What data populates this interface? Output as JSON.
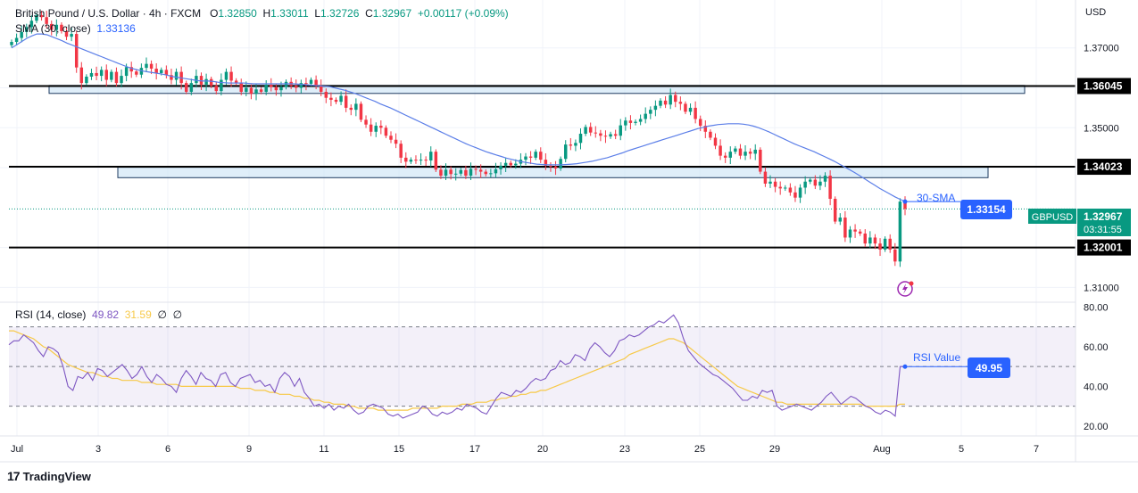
{
  "header": {
    "symbol": "British Pound / U.S. Dollar · 4h · FXCM",
    "open_label": "O",
    "open": "1.32850",
    "high_label": "H",
    "high": "1.33011",
    "low_label": "L",
    "low": "1.32726",
    "close_label": "C",
    "close": "1.32967",
    "change": "+0.00117 (+0.09%)",
    "sma_label": "SMA (30, close)",
    "sma_value": "1.33136",
    "rsi_label": "RSI (14, close)",
    "rsi_value": "49.82",
    "rsi_ma_value": "31.59",
    "rsi_extra1": "∅",
    "rsi_extra2": "∅"
  },
  "currency": "USD",
  "brand": {
    "logo_mark": "17",
    "name": "TradingView"
  },
  "colors": {
    "up": "#089981",
    "down": "#f23645",
    "sma": "#5b7ee8",
    "rsi": "#7e57c2",
    "rsi_ma": "#f7c948",
    "zone": "#c9e2f5"
  },
  "chart_data": [
    {
      "type": "candlestick",
      "title": "British Pound / U.S. Dollar · 4h · FXCM",
      "ylim": [
        1.3063,
        1.382
      ],
      "y_ticks": [
        "1.37000",
        "1.35000",
        "1.31000"
      ],
      "x_ticks": [
        "Jul",
        "3",
        "6",
        "9",
        "11",
        "15",
        "17",
        "20",
        "23",
        "25",
        "29",
        "Aug",
        "5",
        "7"
      ],
      "levels": [
        {
          "value": "1.36045"
        },
        {
          "value": "1.34023"
        },
        {
          "value": "1.32001"
        }
      ],
      "zones": [
        {
          "top": 1.3606,
          "bottom": 1.3586
        },
        {
          "top": 1.3401,
          "bottom": 1.3375
        }
      ],
      "current_price": {
        "label": "GBPUSD",
        "value": "1.32967",
        "countdown": "03:31:55"
      },
      "sma_annotation": {
        "text": "30-SMA",
        "value": "1.33154"
      },
      "closes": [
        1.3715,
        1.3725,
        1.374,
        1.3752,
        1.3768,
        1.3782,
        1.3777,
        1.376,
        1.3745,
        1.3758,
        1.3742,
        1.3728,
        1.3735,
        1.3651,
        1.3612,
        1.3628,
        1.3637,
        1.363,
        1.3645,
        1.362,
        1.364,
        1.3612,
        1.363,
        1.3652,
        1.3641,
        1.3633,
        1.365,
        1.366,
        1.3648,
        1.3637,
        1.3645,
        1.3632,
        1.362,
        1.364,
        1.3612,
        1.359,
        1.3612,
        1.363,
        1.3608,
        1.3622,
        1.3605,
        1.3592,
        1.362,
        1.364,
        1.3618,
        1.3612,
        1.359,
        1.36,
        1.3585,
        1.3596,
        1.359,
        1.3608,
        1.3602,
        1.3594,
        1.3602,
        1.3615,
        1.3605,
        1.36,
        1.3612,
        1.361,
        1.362,
        1.3605,
        1.359,
        1.3575,
        1.357,
        1.3565,
        1.358,
        1.355,
        1.3545,
        1.356,
        1.352,
        1.3508,
        1.349,
        1.3505,
        1.35,
        1.348,
        1.347,
        1.346,
        1.3425,
        1.3415,
        1.342,
        1.3418,
        1.342,
        1.3418,
        1.344,
        1.3395,
        1.338,
        1.3395,
        1.3384,
        1.3385,
        1.3394,
        1.338,
        1.3397,
        1.3395,
        1.339,
        1.3384,
        1.3386,
        1.3396,
        1.3405,
        1.3412,
        1.3406,
        1.341,
        1.342,
        1.3428,
        1.3425,
        1.344,
        1.342,
        1.3405,
        1.3403,
        1.3398,
        1.3422,
        1.3458,
        1.3455,
        1.3462,
        1.3485,
        1.3502,
        1.3488,
        1.3486,
        1.348,
        1.3478,
        1.3484,
        1.348,
        1.3506,
        1.3518,
        1.3512,
        1.3515,
        1.3522,
        1.3535,
        1.3545,
        1.3555,
        1.3568,
        1.3558,
        1.3582,
        1.3565,
        1.356,
        1.354,
        1.355,
        1.3522,
        1.3505,
        1.349,
        1.3475,
        1.3455,
        1.343,
        1.3425,
        1.344,
        1.3448,
        1.343,
        1.344,
        1.3435,
        1.3445,
        1.339,
        1.336,
        1.3365,
        1.3352,
        1.3348,
        1.335,
        1.3338,
        1.3325,
        1.335,
        1.3365,
        1.337,
        1.3355,
        1.3365,
        1.338,
        1.3322,
        1.3265,
        1.3275,
        1.3225,
        1.3245,
        1.324,
        1.3235,
        1.321,
        1.3225,
        1.321,
        1.3195,
        1.3222,
        1.3195,
        1.3165,
        1.3315,
        1.3297
      ],
      "sma": [
        1.37,
        1.3708,
        1.3716,
        1.3724,
        1.373,
        1.3735,
        1.3735,
        1.3733,
        1.3728,
        1.3723,
        1.3718,
        1.3712,
        1.3707,
        1.3702,
        1.3697,
        1.3692,
        1.3687,
        1.3682,
        1.3677,
        1.3672,
        1.3667,
        1.3662,
        1.3657,
        1.3652,
        1.3648,
        1.3645,
        1.3642,
        1.364,
        1.3638,
        1.3636,
        1.3634,
        1.3631,
        1.3628,
        1.3626,
        1.3624,
        1.3622,
        1.362,
        1.3618,
        1.3617,
        1.3617,
        1.3616,
        1.3614,
        1.3613,
        1.3612,
        1.3612,
        1.3612,
        1.3612,
        1.3611,
        1.361,
        1.361,
        1.361,
        1.361,
        1.361,
        1.361,
        1.361,
        1.361,
        1.361,
        1.3609,
        1.3608,
        1.3607,
        1.3606,
        1.3605,
        1.3604,
        1.3603,
        1.36,
        1.3597,
        1.3594,
        1.359,
        1.3586,
        1.3581,
        1.3576,
        1.3571,
        1.3566,
        1.356,
        1.3555,
        1.355,
        1.3544,
        1.3538,
        1.3532,
        1.3526,
        1.352,
        1.3514,
        1.3508,
        1.3502,
        1.3496,
        1.349,
        1.3484,
        1.3478,
        1.3472,
        1.3466,
        1.346,
        1.3455,
        1.345,
        1.3445,
        1.344,
        1.3436,
        1.3432,
        1.3428,
        1.3424,
        1.3421,
        1.3418,
        1.3415,
        1.3413,
        1.3411,
        1.3409,
        1.3408,
        1.3407,
        1.3407,
        1.3407,
        1.3407,
        1.3408,
        1.3409,
        1.341,
        1.3412,
        1.3414,
        1.3416,
        1.3419,
        1.3422,
        1.3425,
        1.3429,
        1.3433,
        1.3437,
        1.3442,
        1.3446,
        1.345,
        1.3454,
        1.3458,
        1.3462,
        1.3466,
        1.347,
        1.3474,
        1.3478,
        1.3482,
        1.3486,
        1.349,
        1.3494,
        1.3498,
        1.3501,
        1.3504,
        1.3506,
        1.3508,
        1.3509,
        1.351,
        1.351,
        1.351,
        1.3509,
        1.3507,
        1.3504,
        1.35,
        1.3495,
        1.349,
        1.3484,
        1.3478,
        1.3472,
        1.3466,
        1.346,
        1.3455,
        1.345,
        1.3445,
        1.344,
        1.3434,
        1.3428,
        1.3422,
        1.3416,
        1.3409,
        1.3402,
        1.3395,
        1.3388,
        1.338,
        1.3372,
        1.3364,
        1.3356,
        1.3348,
        1.3341,
        1.3334,
        1.3327,
        1.3321,
        1.3315
      ]
    },
    {
      "type": "line",
      "title": "RSI (14, close)",
      "ylim": [
        15,
        82
      ],
      "y_ticks": [
        "80.00",
        "60.00",
        "40.00",
        "20.00"
      ],
      "bands": [
        70,
        50,
        30
      ],
      "rsi_annotation": {
        "text": "RSI Value",
        "value": "49.95"
      },
      "rsi": [
        61,
        63,
        63,
        66,
        64,
        62,
        58,
        55,
        60,
        59,
        57,
        50,
        40,
        38,
        45,
        44,
        47,
        43,
        49,
        48,
        45,
        47,
        49,
        51,
        48,
        44,
        46,
        50,
        45,
        42,
        46,
        44,
        41,
        40,
        37,
        44,
        48,
        45,
        41,
        47,
        44,
        43,
        40,
        46,
        47,
        42,
        40,
        44,
        45,
        46,
        42,
        43,
        40,
        41,
        37,
        44,
        47,
        45,
        40,
        44,
        37,
        34,
        30,
        31,
        29,
        31,
        28,
        30,
        29,
        31,
        28,
        26,
        27,
        30,
        31,
        30,
        29,
        26,
        25,
        26,
        24,
        25,
        26,
        27,
        30,
        29,
        26,
        25,
        27,
        26,
        27,
        29,
        28,
        31,
        30,
        29,
        27,
        26,
        30,
        34,
        37,
        36,
        35,
        38,
        37,
        39,
        42,
        44,
        43,
        44,
        48,
        49,
        53,
        51,
        52,
        56,
        55,
        53,
        59,
        62,
        60,
        57,
        55,
        58,
        63,
        64,
        66,
        65,
        66,
        68,
        70,
        71,
        73,
        72,
        74,
        76,
        72,
        64,
        58,
        55,
        52,
        50,
        48,
        46,
        45,
        43,
        41,
        39,
        36,
        33,
        33,
        35,
        34,
        38,
        37,
        38,
        30,
        28,
        29,
        30,
        31,
        30,
        29,
        28,
        30,
        32,
        35,
        37,
        34,
        31,
        33,
        35,
        34,
        32,
        30,
        29,
        27,
        26,
        28,
        27,
        25,
        50,
        50
      ],
      "rsi_ma": [
        68,
        68,
        67,
        66,
        65,
        64,
        62,
        60,
        59,
        57,
        55,
        53,
        51,
        50,
        49,
        48,
        47,
        47,
        46,
        45,
        45,
        44,
        44,
        43,
        43,
        43,
        43,
        42,
        42,
        42,
        41,
        41,
        41,
        41,
        41,
        40,
        40,
        40,
        40,
        40,
        40,
        40,
        40,
        40,
        40,
        40,
        40,
        39,
        39,
        39,
        38,
        38,
        38,
        37,
        37,
        36,
        36,
        36,
        35,
        35,
        34,
        34,
        33,
        33,
        32,
        32,
        31,
        31,
        31,
        30,
        30,
        29,
        29,
        29,
        29,
        28,
        28,
        28,
        28,
        28,
        28,
        28,
        29,
        29,
        29,
        29,
        29,
        29,
        30,
        30,
        30,
        30,
        31,
        31,
        31,
        32,
        32,
        32,
        33,
        33,
        34,
        34,
        35,
        35,
        36,
        36,
        37,
        37,
        38,
        38,
        39,
        40,
        41,
        42,
        43,
        44,
        45,
        46,
        47,
        48,
        49,
        50,
        51,
        52,
        53,
        54,
        56,
        57,
        58,
        59,
        60,
        61,
        62,
        63,
        64,
        64,
        63,
        62,
        60,
        58,
        56,
        54,
        52,
        50,
        48,
        46,
        44,
        42,
        40,
        39,
        38,
        37,
        36,
        35,
        34,
        33,
        32,
        32,
        31,
        31,
        31,
        31,
        31,
        31,
        31,
        31,
        31,
        31,
        31,
        31,
        31,
        31,
        31,
        31,
        30,
        30,
        30,
        30,
        30,
        30,
        30,
        31,
        31
      ]
    }
  ],
  "bottom_axis_labels": [
    "Jul",
    "3",
    "6",
    "9",
    "11",
    "15",
    "17",
    "20",
    "23",
    "25",
    "29",
    "Aug",
    "5",
    "7"
  ]
}
